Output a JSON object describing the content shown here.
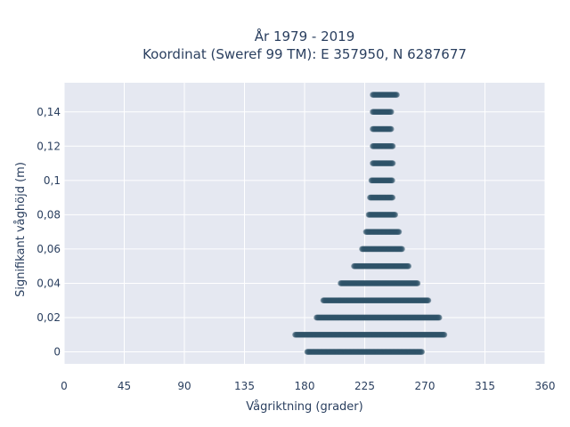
{
  "chart_data": {
    "type": "scatter",
    "title": "År 1979 - 2019",
    "subtitle": "Koordinat (Sweref 99 TM): E 357950, N 6287677",
    "xlabel": "Vågriktning (grader)",
    "ylabel": "Signifikant våghöjd (m)",
    "xlim": [
      0,
      360
    ],
    "ylim": [
      -0.007,
      0.157
    ],
    "x_ticks": [
      0,
      45,
      90,
      135,
      180,
      225,
      270,
      315,
      360
    ],
    "x_tick_labels": [
      "0",
      "45",
      "90",
      "135",
      "180",
      "225",
      "270",
      "315",
      "360"
    ],
    "y_ticks": [
      0,
      0.02,
      0.04,
      0.06,
      0.08,
      0.1,
      0.12,
      0.14
    ],
    "y_tick_labels": [
      "0",
      "0,02",
      "0,04",
      "0,06",
      "0,08",
      "0,1",
      "0,12",
      "0,14"
    ],
    "grid": true,
    "legend": false,
    "marker_color": "#2e5268",
    "plot_bg": "#e5e8f1",
    "series": [
      {
        "bands": [
          {
            "y": 0.0,
            "x_min": 182,
            "x_max": 268
          },
          {
            "y": 0.01,
            "x_min": 173,
            "x_max": 285
          },
          {
            "y": 0.02,
            "x_min": 189,
            "x_max": 281
          },
          {
            "y": 0.03,
            "x_min": 194,
            "x_max": 273
          },
          {
            "y": 0.04,
            "x_min": 207,
            "x_max": 265
          },
          {
            "y": 0.05,
            "x_min": 217,
            "x_max": 258
          },
          {
            "y": 0.06,
            "x_min": 223,
            "x_max": 253
          },
          {
            "y": 0.07,
            "x_min": 226,
            "x_max": 251
          },
          {
            "y": 0.08,
            "x_min": 228,
            "x_max": 248
          },
          {
            "y": 0.09,
            "x_min": 229,
            "x_max": 246
          },
          {
            "y": 0.1,
            "x_min": 230,
            "x_max": 246
          },
          {
            "y": 0.11,
            "x_min": 231,
            "x_max": 246
          },
          {
            "y": 0.12,
            "x_min": 231,
            "x_max": 246
          },
          {
            "y": 0.13,
            "x_min": 231,
            "x_max": 245
          },
          {
            "y": 0.14,
            "x_min": 231,
            "x_max": 245
          },
          {
            "y": 0.15,
            "x_min": 231,
            "x_max": 249
          }
        ]
      }
    ]
  }
}
